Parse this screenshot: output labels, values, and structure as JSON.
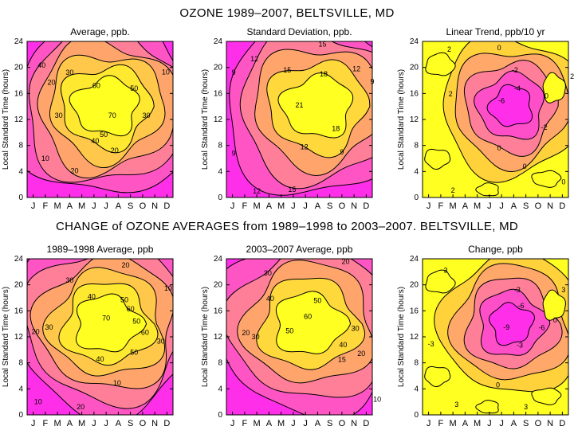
{
  "figure": {
    "title_top": "OZONE 1989–2007, BELTSVILLE, MD",
    "title_bottom": "CHANGE of OZONE AVERAGES from 1989–1998 to 2003–2007. BELTSVILLE, MD"
  },
  "chart_data": [
    {
      "type": "contour",
      "title": "Average, ppb.",
      "xlabel": "",
      "ylabel": "Local Standard Time (hours)",
      "x_ticks": [
        "J",
        "F",
        "M",
        "A",
        "M",
        "J",
        "J",
        "A",
        "S",
        "O",
        "N",
        "D"
      ],
      "y_ticks": [
        0,
        4,
        8,
        12,
        16,
        20,
        24
      ],
      "ylim": [
        0,
        24
      ],
      "peak": {
        "month": 6.5,
        "hour": 14
      },
      "levels": [
        10,
        20,
        30,
        40,
        50,
        60,
        70
      ],
      "labels": [
        {
          "text": "40",
          "month": 1.2,
          "hour": 20.3
        },
        {
          "text": "30",
          "month": 3.5,
          "hour": 19.2
        },
        {
          "text": "20",
          "month": 2.0,
          "hour": 17.7
        },
        {
          "text": "60",
          "month": 5.7,
          "hour": 17.2
        },
        {
          "text": "50",
          "month": 8.8,
          "hour": 16.8
        },
        {
          "text": "30",
          "month": 2.6,
          "hour": 12.6
        },
        {
          "text": "70",
          "month": 7.0,
          "hour": 12.6
        },
        {
          "text": "30",
          "month": 9.8,
          "hour": 12.6
        },
        {
          "text": "50",
          "month": 6.3,
          "hour": 9.7
        },
        {
          "text": "40",
          "month": 5.6,
          "hour": 8.7
        },
        {
          "text": "10",
          "month": 1.5,
          "hour": 6.0
        },
        {
          "text": "20",
          "month": 3.9,
          "hour": 4.1
        },
        {
          "text": "20",
          "month": 7.2,
          "hour": 7.2
        },
        {
          "text": "10",
          "month": 11.4,
          "hour": 19.3
        }
      ]
    },
    {
      "type": "contour",
      "title": "Standard Deviation, ppb.",
      "xlabel": "",
      "ylabel": "Local Standard Time (hours)",
      "x_ticks": [
        "J",
        "F",
        "M",
        "A",
        "M",
        "J",
        "J",
        "A",
        "S",
        "O",
        "N",
        "D"
      ],
      "y_ticks": [
        0,
        4,
        8,
        12,
        16,
        20,
        24
      ],
      "ylim": [
        0,
        24
      ],
      "peak": {
        "month": 7.5,
        "hour": 14
      },
      "levels": [
        9,
        12,
        15,
        18,
        21
      ],
      "labels": [
        {
          "text": "15",
          "month": 7.9,
          "hour": 23.6
        },
        {
          "text": "12",
          "month": 2.3,
          "hour": 21.3
        },
        {
          "text": "15",
          "month": 5.0,
          "hour": 19.6
        },
        {
          "text": "18",
          "month": 8.0,
          "hour": 19.0
        },
        {
          "text": "12",
          "month": 10.7,
          "hour": 19.8
        },
        {
          "text": "9",
          "month": 0.6,
          "hour": 19.2
        },
        {
          "text": "9",
          "month": 12.0,
          "hour": 17.8
        },
        {
          "text": "21",
          "month": 6.0,
          "hour": 14.2
        },
        {
          "text": "18",
          "month": 9.0,
          "hour": 10.6
        },
        {
          "text": "12",
          "month": 6.4,
          "hour": 7.8
        },
        {
          "text": "9",
          "month": 9.5,
          "hour": 7.0
        },
        {
          "text": "9",
          "month": 0.6,
          "hour": 6.8
        },
        {
          "text": "12",
          "month": 2.5,
          "hour": 1.0
        },
        {
          "text": "15",
          "month": 5.4,
          "hour": 1.2
        }
      ]
    },
    {
      "type": "contour",
      "title": "Linear Trend, ppb/10 yr",
      "xlabel": "",
      "ylabel": "Local Standard Time (hours)",
      "x_ticks": [
        "J",
        "F",
        "M",
        "A",
        "M",
        "J",
        "J",
        "A",
        "S",
        "O",
        "N",
        "D"
      ],
      "y_ticks": [
        0,
        4,
        8,
        12,
        16,
        20,
        24
      ],
      "ylim": [
        0,
        24
      ],
      "peak": {
        "month": 7.3,
        "hour": 14
      },
      "levels": [
        -6,
        -4,
        -2,
        0,
        2
      ],
      "labels": [
        {
          "text": "0",
          "month": 6.3,
          "hour": 23.0
        },
        {
          "text": "2",
          "month": 2.2,
          "hour": 22.8
        },
        {
          "text": "-2",
          "month": 7.6,
          "hour": 19.6
        },
        {
          "text": "2",
          "month": 12.3,
          "hour": 18.6
        },
        {
          "text": "2",
          "month": 12.6,
          "hour": 22.2
        },
        {
          "text": "-4",
          "month": 7.8,
          "hour": 16.8
        },
        {
          "text": "-6",
          "month": 6.5,
          "hour": 14.9
        },
        {
          "text": "2",
          "month": 2.3,
          "hour": 15.9
        },
        {
          "text": "0",
          "month": 10.2,
          "hour": 15.6
        },
        {
          "text": "-2",
          "month": 10.0,
          "hour": 10.8
        },
        {
          "text": "0",
          "month": 6.3,
          "hour": 7.6
        },
        {
          "text": "0",
          "month": 8.4,
          "hour": 4.8
        },
        {
          "text": "2",
          "month": 2.5,
          "hour": 1.1
        },
        {
          "text": "0",
          "month": 11.6,
          "hour": 2.4
        }
      ]
    },
    {
      "type": "contour",
      "title": "1989–1998 Average, ppb",
      "xlabel": "",
      "ylabel": "Local Standard Time (hours)",
      "x_ticks": [
        "J",
        "F",
        "M",
        "A",
        "M",
        "J",
        "J",
        "A",
        "S",
        "O",
        "N",
        "D"
      ],
      "y_ticks": [
        0,
        4,
        8,
        12,
        16,
        20,
        24
      ],
      "ylim": [
        0,
        24
      ],
      "peak": {
        "month": 6.6,
        "hour": 14
      },
      "levels": [
        10,
        20,
        30,
        40,
        50,
        60,
        70
      ],
      "labels": [
        {
          "text": "20",
          "month": 8.1,
          "hour": 23.0
        },
        {
          "text": "30",
          "month": 3.5,
          "hour": 20.7
        },
        {
          "text": "10",
          "month": 11.6,
          "hour": 19.5
        },
        {
          "text": "40",
          "month": 5.3,
          "hour": 18.2
        },
        {
          "text": "50",
          "month": 8.0,
          "hour": 17.7
        },
        {
          "text": "60",
          "month": 8.5,
          "hour": 16.3
        },
        {
          "text": "70",
          "month": 6.5,
          "hour": 14.9
        },
        {
          "text": "50",
          "month": 9.0,
          "hour": 14.4
        },
        {
          "text": "20",
          "month": 0.7,
          "hour": 12.8
        },
        {
          "text": "30",
          "month": 1.8,
          "hour": 13.5
        },
        {
          "text": "60",
          "month": 9.7,
          "hour": 12.7
        },
        {
          "text": "30",
          "month": 11.0,
          "hour": 11.3
        },
        {
          "text": "50",
          "month": 8.8,
          "hour": 9.6
        },
        {
          "text": "40",
          "month": 6.0,
          "hour": 8.6
        },
        {
          "text": "10",
          "month": 7.4,
          "hour": 4.9
        },
        {
          "text": "10",
          "month": 0.9,
          "hour": 2.0
        },
        {
          "text": "20",
          "month": 4.4,
          "hour": 1.2
        }
      ]
    },
    {
      "type": "contour",
      "title": "2003–2007 Average, ppb",
      "xlabel": "",
      "ylabel": "Local Standard Time (hours)",
      "x_ticks": [
        "J",
        "F",
        "M",
        "A",
        "M",
        "J",
        "J",
        "A",
        "S",
        "O",
        "N",
        "D"
      ],
      "y_ticks": [
        0,
        4,
        8,
        12,
        16,
        20,
        24
      ],
      "ylim": [
        0,
        24
      ],
      "peak": {
        "month": 6.8,
        "hour": 14
      },
      "levels": [
        10,
        15,
        20,
        30,
        40,
        50,
        60
      ],
      "labels": [
        {
          "text": "20",
          "month": 9.8,
          "hour": 23.6
        },
        {
          "text": "30",
          "month": 3.4,
          "hour": 21.8
        },
        {
          "text": "40",
          "month": 3.6,
          "hour": 17.9
        },
        {
          "text": "50",
          "month": 7.5,
          "hour": 17.6
        },
        {
          "text": "60",
          "month": 6.7,
          "hour": 15.1
        },
        {
          "text": "50",
          "month": 5.2,
          "hour": 12.9
        },
        {
          "text": "30",
          "month": 10.6,
          "hour": 13.3
        },
        {
          "text": "20",
          "month": 1.6,
          "hour": 12.6
        },
        {
          "text": "30",
          "month": 2.4,
          "hour": 12.0
        },
        {
          "text": "40",
          "month": 9.6,
          "hour": 10.8
        },
        {
          "text": "20",
          "month": 11.1,
          "hour": 9.4
        },
        {
          "text": "15",
          "month": 9.5,
          "hour": 8.5
        },
        {
          "text": "10",
          "month": 12.4,
          "hour": 2.4
        }
      ]
    },
    {
      "type": "contour",
      "title": "Change, ppb",
      "xlabel": "",
      "ylabel": "Local Standard Time (hours)",
      "x_ticks": [
        "J",
        "F",
        "M",
        "A",
        "M",
        "J",
        "J",
        "A",
        "S",
        "O",
        "N",
        "D"
      ],
      "y_ticks": [
        0,
        4,
        8,
        12,
        16,
        20,
        24
      ],
      "ylim": [
        0,
        24
      ],
      "peak": {
        "month": 7.3,
        "hour": 14
      },
      "levels": [
        -9,
        -6,
        -3,
        0,
        3
      ],
      "labels": [
        {
          "text": "3",
          "month": 1.9,
          "hour": 22.2
        },
        {
          "text": "-3",
          "month": 7.8,
          "hour": 19.2
        },
        {
          "text": "3",
          "month": 11.6,
          "hour": 19.2
        },
        {
          "text": "-6",
          "month": 8.1,
          "hour": 16.8
        },
        {
          "text": "-9",
          "month": 6.9,
          "hour": 13.5
        },
        {
          "text": "-6",
          "month": 9.8,
          "hour": 13.4
        },
        {
          "text": "0",
          "month": 10.9,
          "hour": 14.6
        },
        {
          "text": "-3",
          "month": 8.0,
          "hour": 10.7
        },
        {
          "text": "-3",
          "month": 0.7,
          "hour": 10.9
        },
        {
          "text": "0",
          "month": 6.2,
          "hour": 4.6
        },
        {
          "text": "3",
          "month": 2.8,
          "hour": 1.6
        },
        {
          "text": "3",
          "month": 8.5,
          "hour": 1.2
        }
      ]
    }
  ]
}
